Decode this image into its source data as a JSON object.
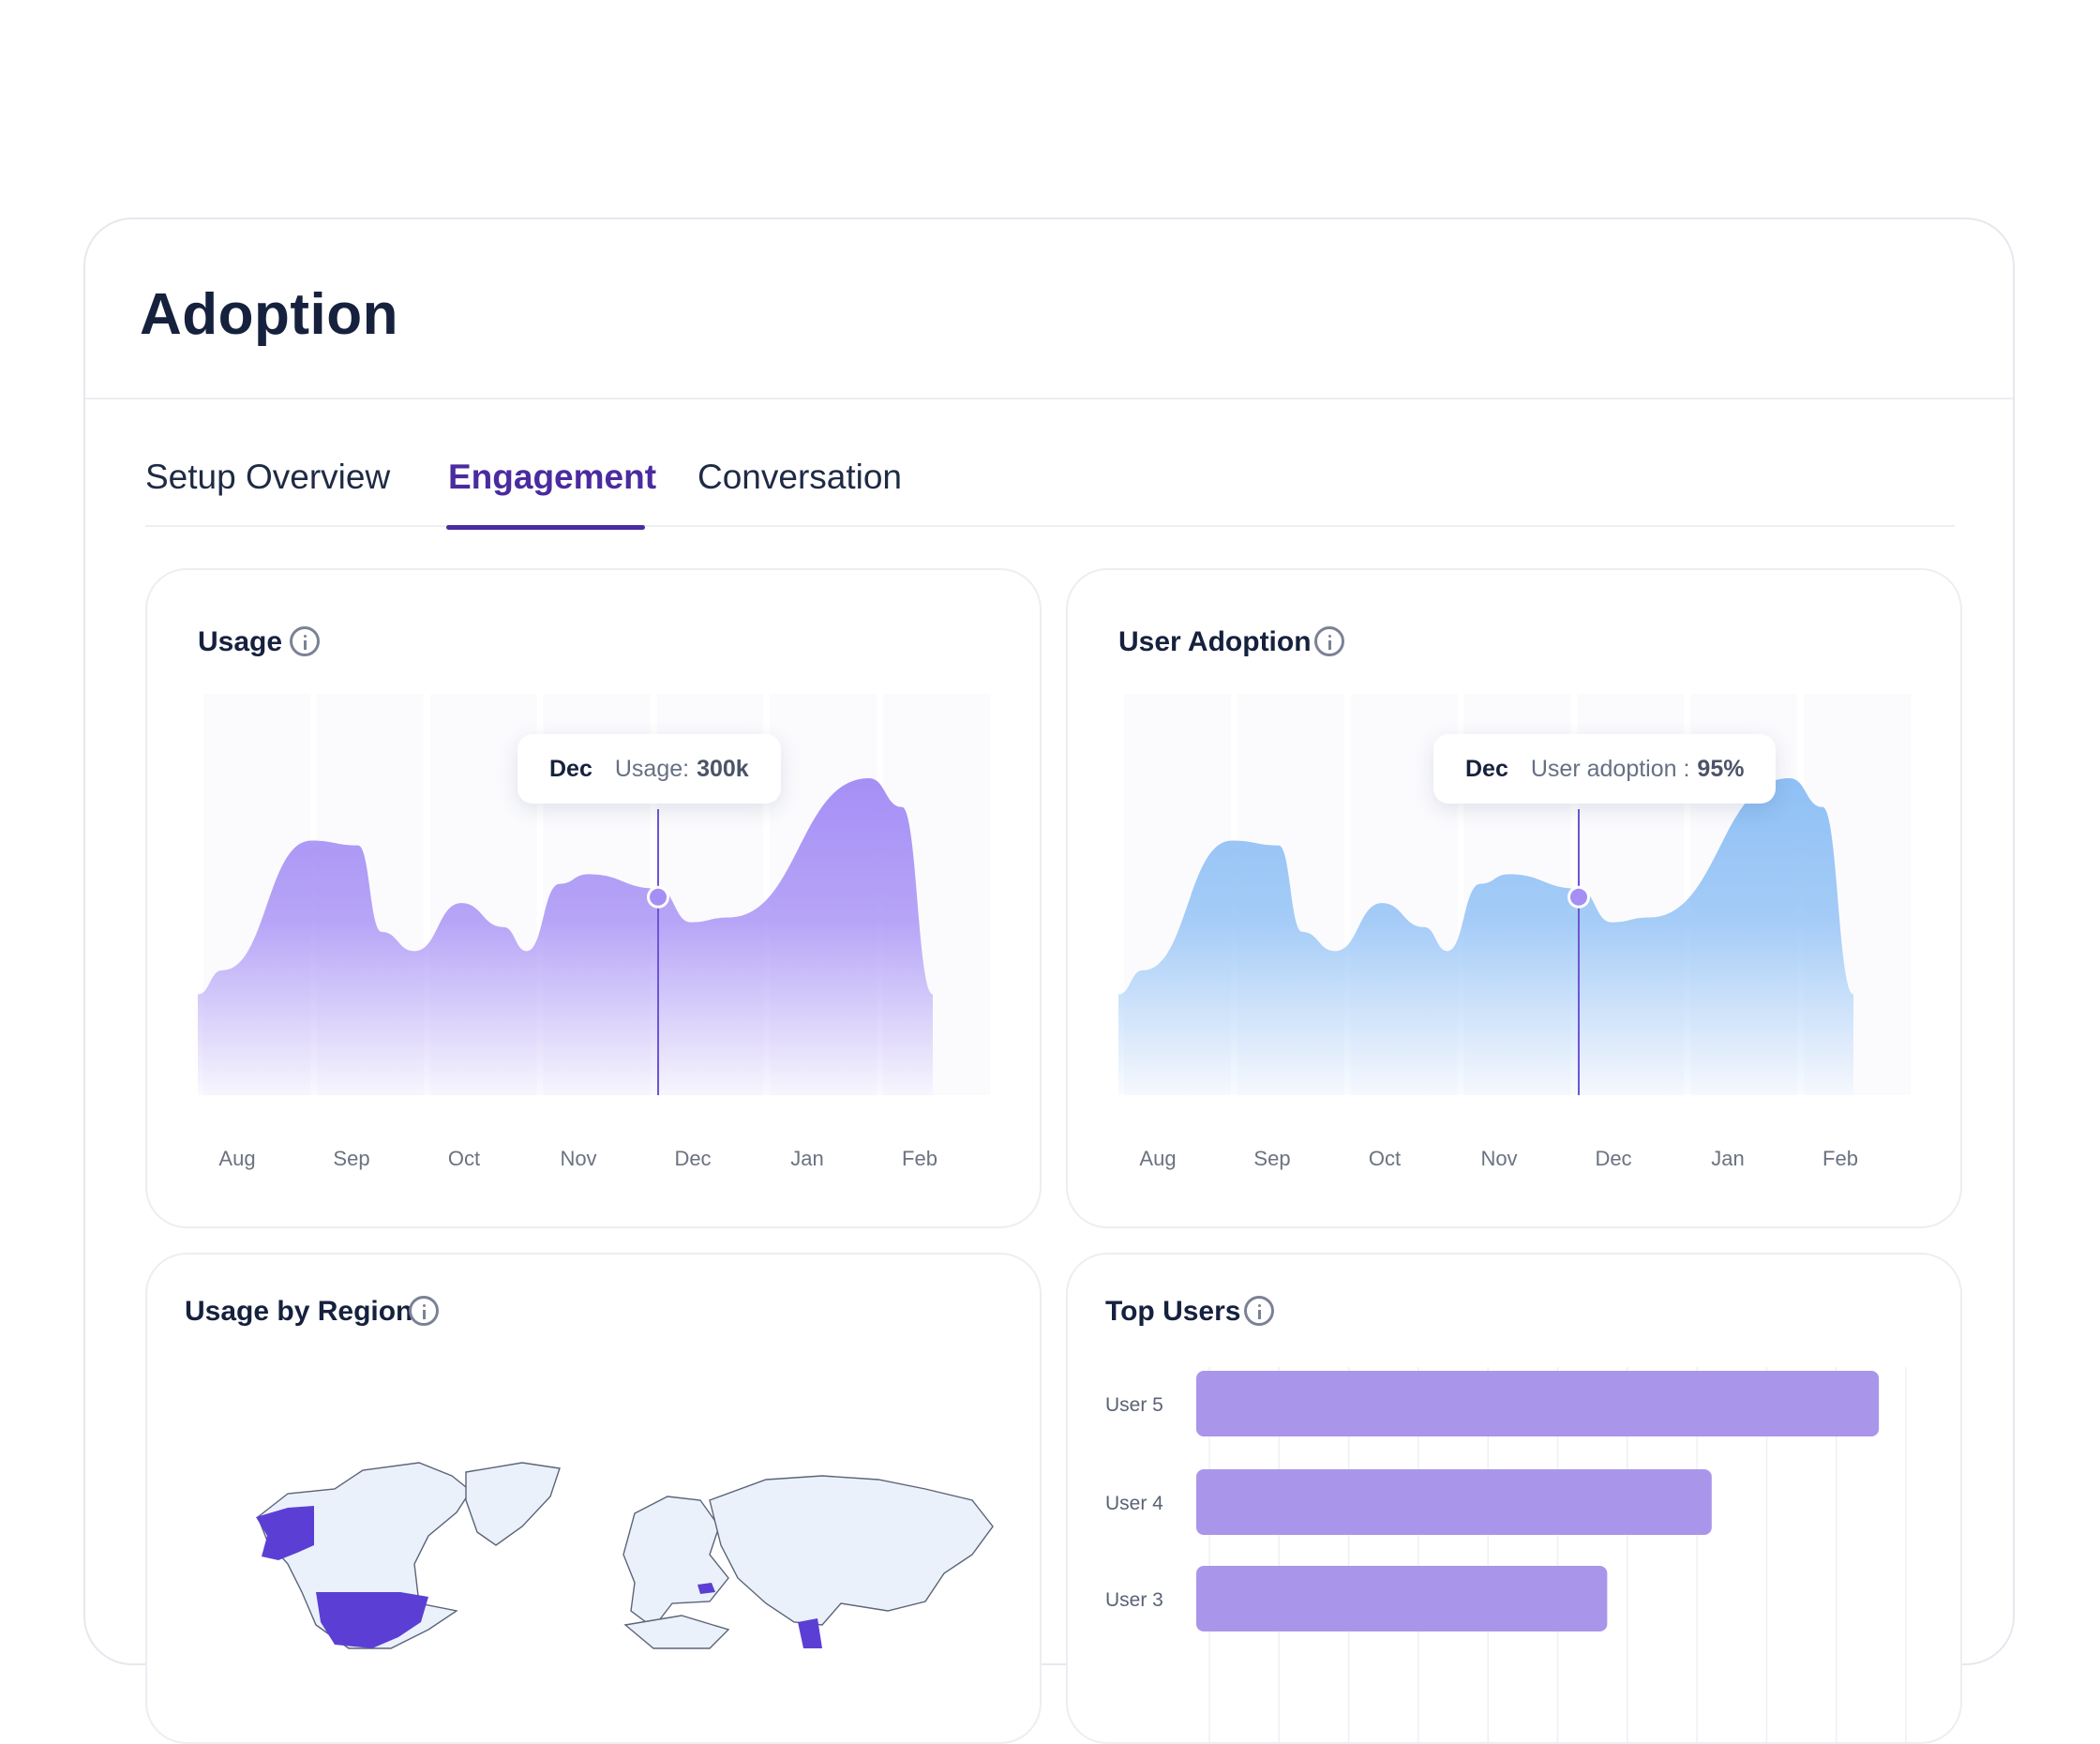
{
  "page": {
    "title": "Adoption"
  },
  "tabs": [
    {
      "label": "Setup Overview",
      "active": false
    },
    {
      "label": "Engagement",
      "active": true
    },
    {
      "label": "Conversation",
      "active": false
    }
  ],
  "colors": {
    "accent": "#4a2ba0",
    "usage_fill": "#a58ff5",
    "adoption_fill": "#8fc0f5",
    "map_highlight": "#5b3fd4",
    "bar": "#a996eb"
  },
  "usage_card": {
    "title": "Usage",
    "tooltip": {
      "month": "Dec",
      "label": "Usage:",
      "value": "300k"
    }
  },
  "adoption_card": {
    "title": "User Adoption",
    "tooltip": {
      "month": "Dec",
      "label": "User adoption :",
      "value": "95%"
    }
  },
  "region_card": {
    "title": "Usage by Region",
    "highlighted_regions": [
      "Alaska",
      "United States",
      "Hungary",
      "India"
    ]
  },
  "top_users_card": {
    "title": "Top Users"
  },
  "chart_data": [
    {
      "type": "area",
      "title": "Usage",
      "categories": [
        "Aug",
        "Sep",
        "Oct",
        "Nov",
        "Dec",
        "Jan",
        "Feb"
      ],
      "values": [
        0.42,
        0.53,
        0.33,
        0.4,
        0.48,
        0.36,
        0.66
      ],
      "highlight": {
        "category": "Dec",
        "label": "Usage",
        "value": "300k"
      }
    },
    {
      "type": "area",
      "title": "User Adoption",
      "categories": [
        "Aug",
        "Sep",
        "Oct",
        "Nov",
        "Dec",
        "Jan",
        "Feb"
      ],
      "values": [
        0.42,
        0.53,
        0.33,
        0.4,
        0.48,
        0.36,
        0.66
      ],
      "highlight": {
        "category": "Dec",
        "label": "User adoption",
        "value": "95%"
      }
    },
    {
      "type": "bar",
      "title": "Top Users",
      "orientation": "horizontal",
      "categories": [
        "User 5",
        "User 4",
        "User 3"
      ],
      "values": [
        98,
        74,
        59
      ]
    }
  ]
}
